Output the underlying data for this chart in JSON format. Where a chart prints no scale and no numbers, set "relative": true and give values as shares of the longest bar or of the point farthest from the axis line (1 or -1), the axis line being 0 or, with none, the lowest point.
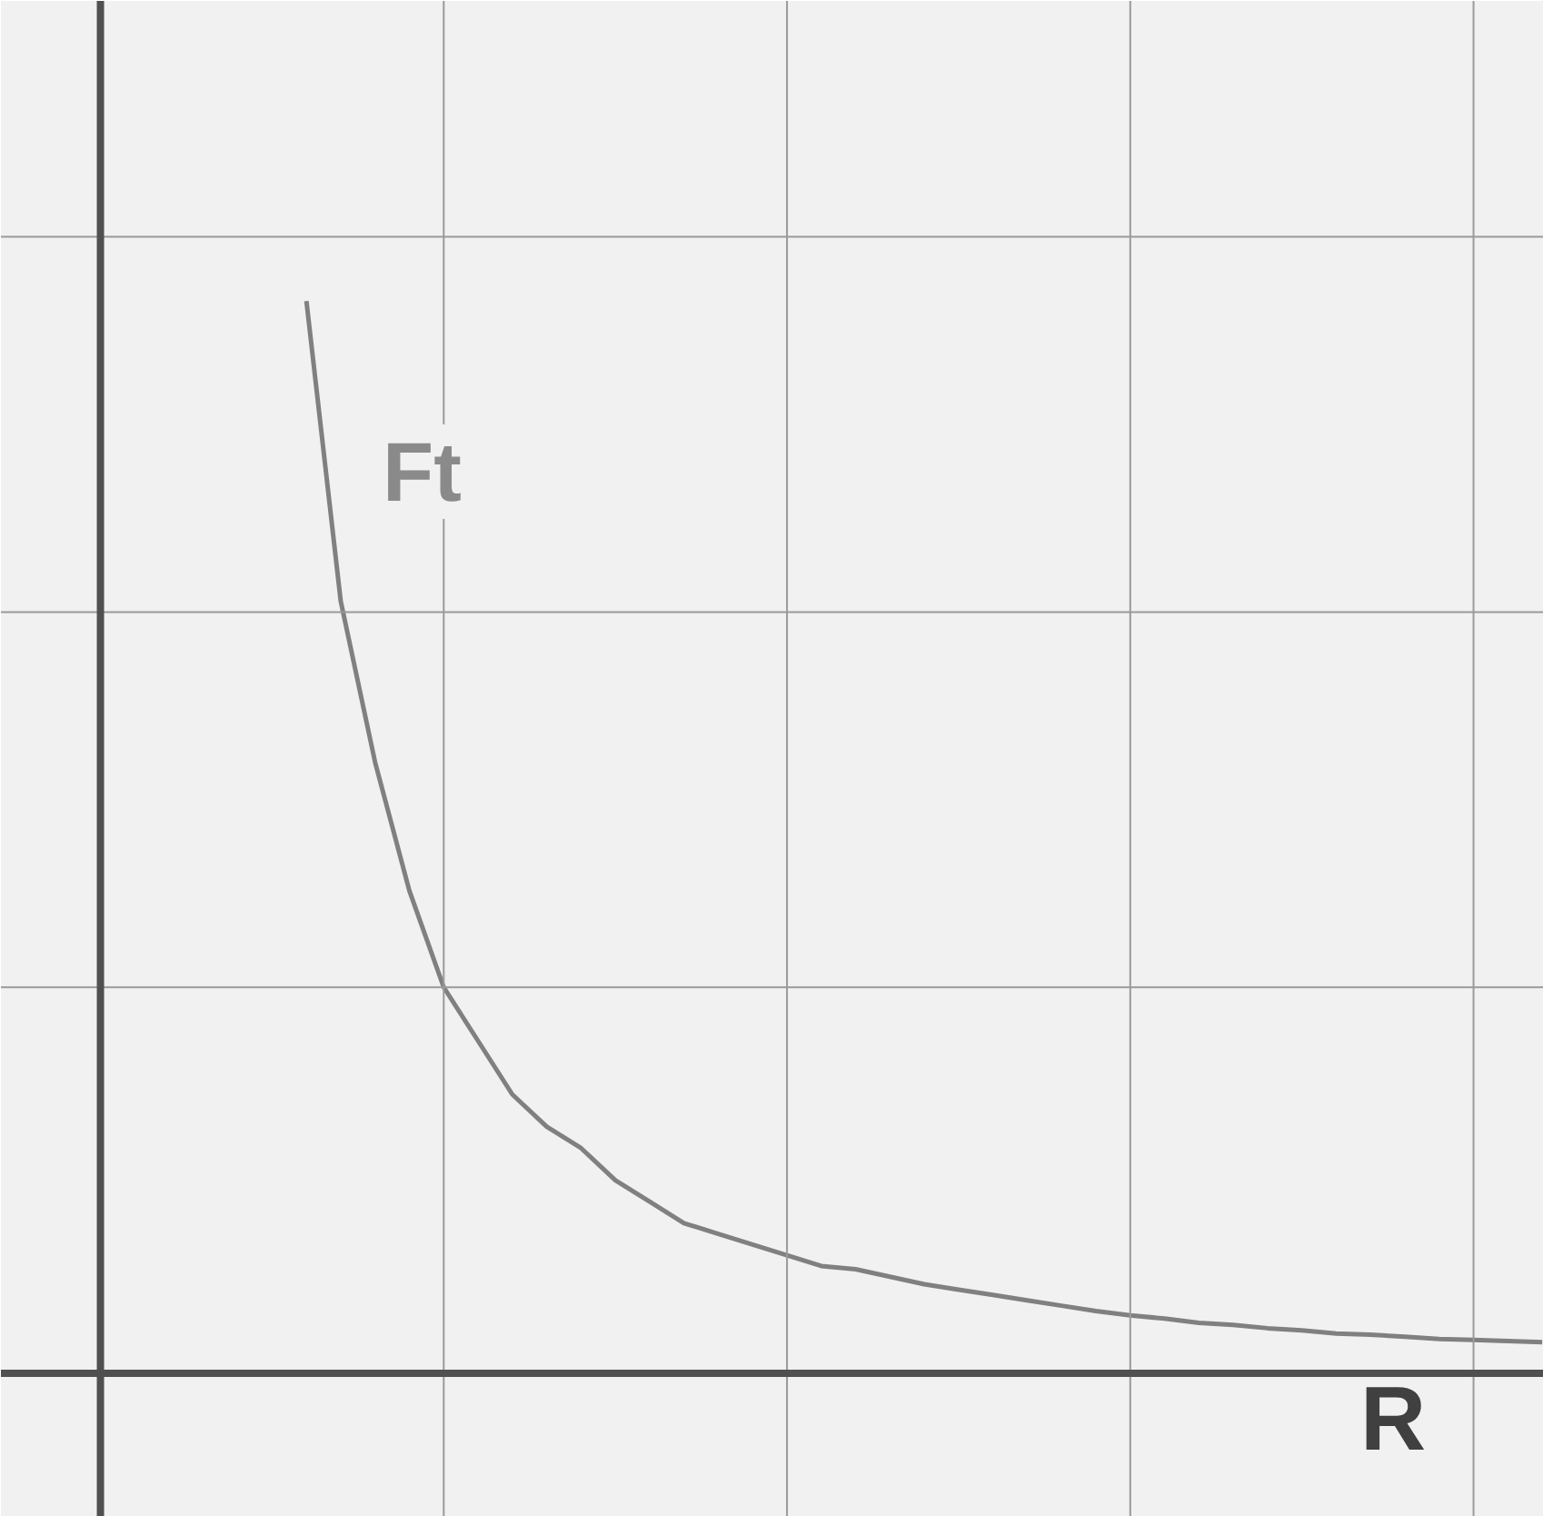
{
  "chart_data": {
    "type": "line",
    "relative": true,
    "xlabel": "R",
    "ylabel": "Ft",
    "grid": true,
    "categories": [
      null,
      null,
      null,
      null,
      null,
      null,
      null,
      null,
      null,
      null,
      null,
      null,
      null,
      null,
      null,
      null,
      null,
      null,
      null,
      null,
      null,
      null,
      null,
      null,
      null,
      null,
      null,
      null,
      null,
      null,
      null,
      null,
      null,
      null,
      null,
      null,
      null,
      null,
      null,
      null,
      null,
      null,
      null
    ],
    "series": [
      {
        "color": "#808080",
        "values": [
          null,
          null,
          null,
          null,
          null,
          null,
          1,
          0.72,
          0.57,
          0.45,
          0.36,
          0.31,
          0.26,
          0.23,
          0.21,
          0.18,
          0.16,
          0.14,
          0.13,
          0.12,
          0.11,
          0.1,
          0.097,
          0.09,
          0.083,
          0.078,
          0.073,
          0.068,
          0.063,
          0.058,
          0.054,
          0.051,
          0.047,
          0.045,
          0.042,
          0.04,
          0.037,
          0.036,
          0.034,
          0.032,
          0.031,
          0.03,
          0.029
        ]
      }
    ]
  }
}
